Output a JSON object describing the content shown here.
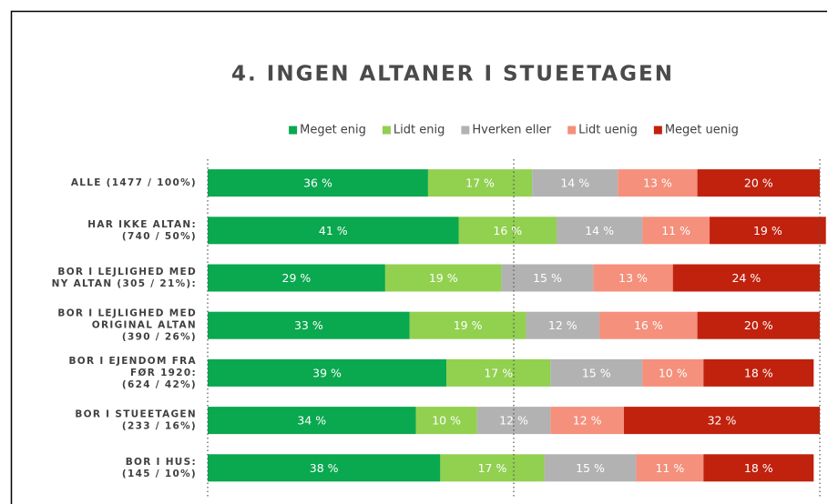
{
  "chart_data": {
    "type": "stacked-barh",
    "title": "4. INGEN ALTANER I STUEETAGEN",
    "categories": [
      [
        "ALLE (1477 / 100%)"
      ],
      [
        "HAR IKKE ALTAN:",
        "(740 / 50%)"
      ],
      [
        "BOR I LEJLIGHED MED",
        "NY ALTAN (305 / 21%):"
      ],
      [
        "BOR I LEJLIGHED MED",
        "ORIGINAL ALTAN",
        "(390 / 26%)"
      ],
      [
        "BOR I EJENDOM FRA",
        "FØR 1920:",
        "(624 / 42%)"
      ],
      [
        "BOR I STUEETAGEN",
        "(233 / 16%)"
      ],
      [
        "BOR I HUS:",
        "(145 / 10%)"
      ]
    ],
    "series": [
      {
        "name": "Meget enig",
        "color": "#0aa84f",
        "values": [
          36,
          41,
          29,
          33,
          39,
          34,
          38
        ],
        "value_labels": [
          "36 %",
          "41 %",
          "29 %",
          "33 %",
          "39 %",
          "34 %",
          "38 %"
        ]
      },
      {
        "name": "Lidt enig",
        "color": "#92d050",
        "values": [
          17,
          16,
          19,
          19,
          17,
          10,
          17
        ],
        "value_labels": [
          "17 %",
          "16 %",
          "19 %",
          "19 %",
          "17 %",
          "10 %",
          "17 %"
        ]
      },
      {
        "name": "Hverken eller",
        "color": "#b2b2b2",
        "values": [
          14,
          14,
          15,
          12,
          15,
          12,
          15
        ],
        "value_labels": [
          "14 %",
          "14 %",
          "15 %",
          "12 %",
          "15 %",
          "12 %",
          "15 %"
        ]
      },
      {
        "name": "Lidt uenig",
        "color": "#f4907c",
        "values": [
          13,
          11,
          13,
          16,
          10,
          12,
          11
        ],
        "value_labels": [
          "13 %",
          "11 %",
          "13 %",
          "16 %",
          "10 %",
          "12 %",
          "11 %"
        ]
      },
      {
        "name": "Meget uenig",
        "color": "#c1220d",
        "values": [
          20,
          19,
          24,
          20,
          18,
          32,
          18
        ],
        "value_labels": [
          "20 %",
          "19 %",
          "24 %",
          "20 %",
          "18 %",
          "32 %",
          "18 %"
        ]
      }
    ],
    "xlim": [
      0,
      100
    ],
    "xticks": [
      0,
      50,
      100
    ],
    "grid": true,
    "legend": "top"
  }
}
